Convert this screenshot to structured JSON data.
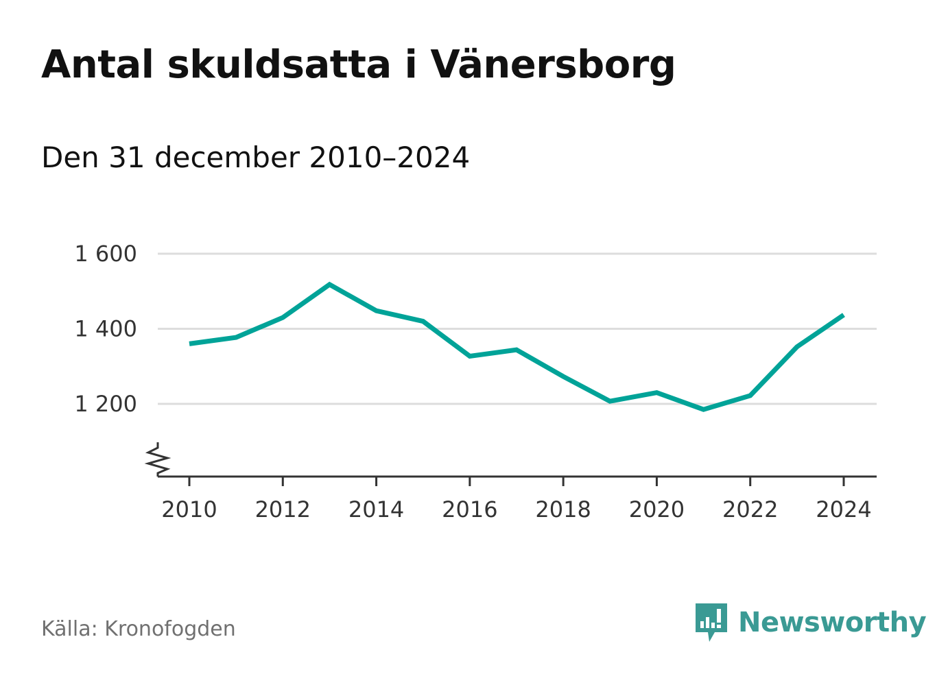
{
  "title": "Antal skuldsatta i Vänersborg",
  "subtitle": "Den 31 december 2010–2024",
  "source": "Källa: Kronofogden",
  "brand": {
    "name": "Newsworthy",
    "icon": "newsworthy-logo-icon",
    "color": "#3a9a94"
  },
  "chart_data": {
    "type": "line",
    "title": "Antal skuldsatta i Vänersborg",
    "subtitle": "Den 31 december 2010–2024",
    "xlabel": "",
    "ylabel": "",
    "x": [
      2010,
      2011,
      2012,
      2013,
      2014,
      2015,
      2016,
      2017,
      2018,
      2019,
      2020,
      2021,
      2022,
      2023,
      2024
    ],
    "series": [
      {
        "name": "Antal skuldsatta",
        "color": "#00a398",
        "values": [
          1360,
          1377,
          1430,
          1518,
          1448,
          1420,
          1327,
          1344,
          1273,
          1207,
          1230,
          1185,
          1222,
          1352,
          1437
        ]
      }
    ],
    "xlim": [
      2010,
      2024
    ],
    "ylim": [
      1000,
      1600
    ],
    "y_axis_break": true,
    "xticks": [
      2010,
      2012,
      2014,
      2016,
      2018,
      2020,
      2022,
      2024
    ],
    "xtick_labels": [
      "2010",
      "2012",
      "2014",
      "2016",
      "2018",
      "2020",
      "2022",
      "2024"
    ],
    "yticks": [
      1200,
      1400,
      1600
    ],
    "ytick_labels": [
      "1 200",
      "1 400",
      "1 600"
    ],
    "grid": true,
    "legend": "none",
    "gridline_color": "#dddddd"
  }
}
